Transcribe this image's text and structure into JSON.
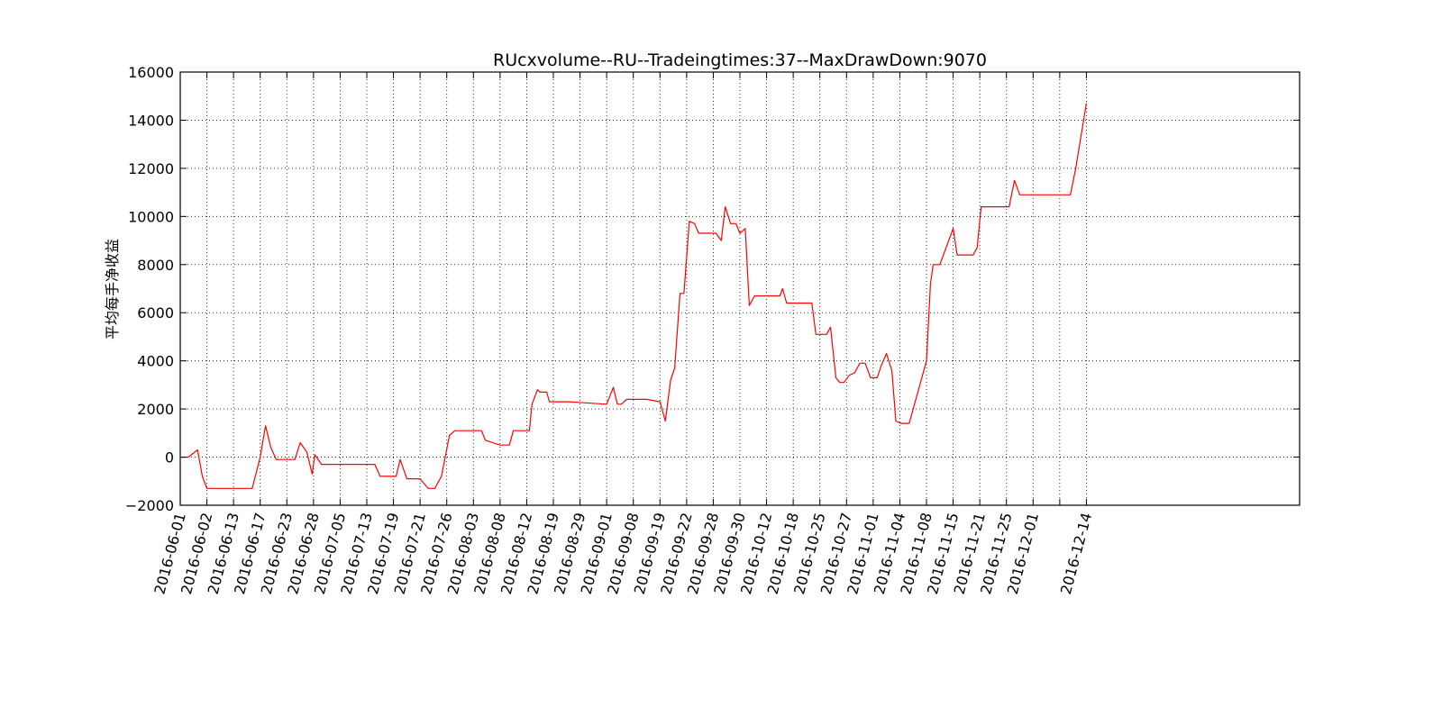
{
  "chart_data": {
    "type": "line",
    "title": "RUcxvolume--RU--Tradeingtimes:37--MaxDrawDown:9070",
    "xlabel": "",
    "ylabel": "平均每手净收益",
    "ylim": [
      -2000,
      16000
    ],
    "yticks": [
      -2000,
      0,
      2000,
      4000,
      6000,
      8000,
      10000,
      12000,
      14000,
      16000
    ],
    "ytick_labels": [
      "−2000",
      "0",
      "2000",
      "4000",
      "6000",
      "8000",
      "10000",
      "12000",
      "14000",
      "16000"
    ],
    "xlim": [
      0,
      42
    ],
    "xtick_positions": [
      0,
      1,
      2,
      3,
      4,
      5,
      6,
      7,
      8,
      9,
      10,
      11,
      12,
      13,
      14,
      15,
      16,
      17,
      18,
      19,
      20,
      21,
      22,
      23,
      24,
      25,
      26,
      27,
      28,
      29,
      30,
      31,
      32,
      33,
      34
    ],
    "xtick_labels": [
      "2016-06-01",
      "2016-06-02",
      "2016-06-13",
      "2016-06-17",
      "2016-06-23",
      "2016-06-28",
      "2016-07-05",
      "2016-07-13",
      "2016-07-19",
      "2016-07-21",
      "2016-07-26",
      "2016-08-03",
      "2016-08-08",
      "2016-08-12",
      "2016-08-19",
      "2016-08-29",
      "2016-09-01",
      "2016-09-08",
      "2016-09-19",
      "2016-09-22",
      "2016-09-28",
      "2016-09-30",
      "2016-10-12",
      "2016-10-18",
      "2016-10-25",
      "2016-10-27",
      "2016-11-01",
      "2016-11-04",
      "2016-11-08",
      "2016-11-15",
      "2016-11-21",
      "2016-11-25",
      "2016-12-01",
      "",
      "2016-12-14"
    ],
    "grid": true,
    "line_color": "#ff0000",
    "series": [
      {
        "name": "",
        "x": [
          0,
          0.3,
          0.65,
          0.83,
          1.0,
          2.7,
          3.0,
          3.2,
          3.4,
          3.6,
          3.8,
          4.3,
          4.5,
          4.75,
          4.95,
          5.05,
          5.3,
          7.3,
          7.5,
          7.9,
          8.1,
          8.25,
          8.5,
          9.0,
          9.3,
          9.55,
          9.8,
          10.1,
          10.3,
          11.0,
          11.3,
          11.45,
          12.0,
          12.2,
          12.35,
          12.5,
          13.1,
          13.2,
          13.4,
          13.5,
          13.75,
          13.85,
          14.6,
          16.0,
          16.25,
          16.4,
          16.55,
          16.75,
          17.5,
          18.0,
          18.2,
          18.4,
          18.55,
          18.75,
          18.9,
          19.1,
          19.3,
          19.45,
          20.1,
          20.3,
          20.45,
          20.65,
          20.85,
          21.0,
          21.2,
          21.35,
          21.55,
          21.7,
          22.5,
          22.6,
          22.75,
          23.7,
          23.85,
          24.25,
          24.4,
          24.6,
          24.75,
          24.9,
          25.1,
          25.3,
          25.5,
          25.7,
          25.9,
          26.15,
          26.3,
          26.5,
          26.7,
          26.85,
          27.05,
          27.2,
          27.35,
          28.0,
          28.15,
          28.25,
          28.35,
          28.5,
          29.0,
          29.15,
          29.35,
          29.75,
          29.9,
          30.05,
          30.3,
          31.1,
          31.3,
          31.5,
          32.5,
          33.4,
          33.6,
          34.0
        ],
        "y": [
          0,
          0,
          300,
          -800,
          -1300,
          -1300,
          0,
          1300,
          400,
          -100,
          -100,
          -100,
          600,
          200,
          -700,
          100,
          -300,
          -300,
          -800,
          -800,
          -800,
          -100,
          -900,
          -900,
          -1300,
          -1300,
          -800,
          900,
          1100,
          1100,
          1100,
          700,
          500,
          500,
          500,
          1100,
          1100,
          2200,
          2800,
          2700,
          2700,
          2300,
          2300,
          2200,
          2900,
          2200,
          2200,
          2400,
          2400,
          2300,
          1500,
          3200,
          3700,
          6800,
          6800,
          9800,
          9700,
          9300,
          9300,
          9000,
          10400,
          9700,
          9700,
          9300,
          9500,
          6300,
          6700,
          6700,
          6700,
          7000,
          6400,
          6400,
          5100,
          5100,
          5400,
          3300,
          3100,
          3100,
          3400,
          3500,
          3900,
          3900,
          3300,
          3300,
          3800,
          4300,
          3600,
          1500,
          1400,
          1400,
          1400,
          4000,
          7200,
          8000,
          8000,
          8000,
          9500,
          8400,
          8400,
          8400,
          8700,
          10400,
          10400,
          10400,
          11500,
          10900,
          10900,
          10900,
          12000,
          14700
        ]
      }
    ]
  }
}
